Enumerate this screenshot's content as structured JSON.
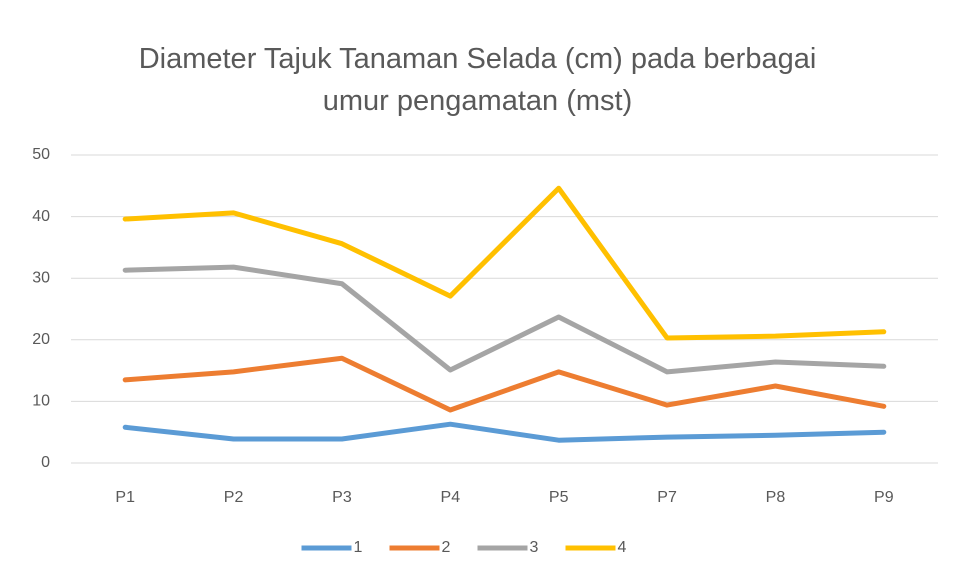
{
  "chart_data": {
    "type": "line",
    "title": "Diameter Tajuk Tanaman Selada (cm) pada berbagai umur pengamatan (mst)",
    "categories": [
      "P1",
      "P2",
      "P3",
      "P4",
      "P5",
      "P7",
      "P8",
      "P9"
    ],
    "series": [
      {
        "name": "1",
        "color": "#5b9bd5",
        "values": [
          5.8,
          3.9,
          3.9,
          6.3,
          3.7,
          4.2,
          4.5,
          5.0
        ]
      },
      {
        "name": "2",
        "color": "#ed7d31",
        "values": [
          13.5,
          14.8,
          17.0,
          8.6,
          14.8,
          9.4,
          12.5,
          9.2
        ]
      },
      {
        "name": "3",
        "color": "#a5a5a5",
        "values": [
          31.3,
          31.8,
          29.1,
          15.1,
          23.7,
          14.8,
          16.4,
          15.7
        ]
      },
      {
        "name": "4",
        "color": "#ffc000",
        "values": [
          39.6,
          40.6,
          35.6,
          27.1,
          44.6,
          20.3,
          20.6,
          21.3
        ]
      }
    ],
    "ylim": [
      0,
      50
    ],
    "yticks": [
      0,
      10,
      20,
      30,
      40,
      50
    ],
    "grid": true,
    "legend": "bottom"
  }
}
